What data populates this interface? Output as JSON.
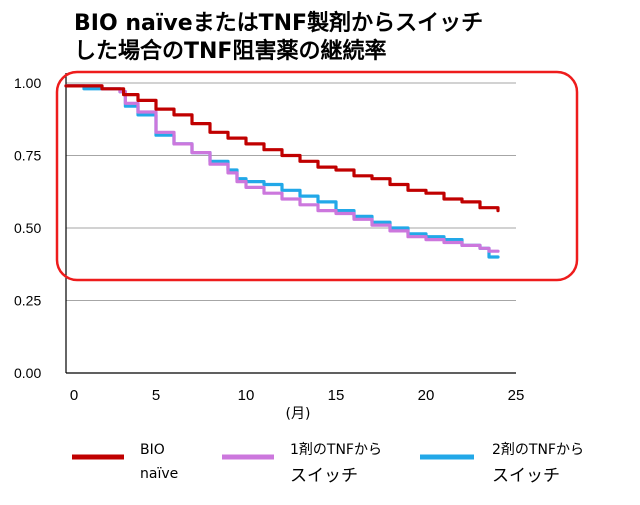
{
  "chart_data": {
    "type": "line",
    "title_lines": [
      "BIO naïveまたはTNF製剤からスイッチ",
      "した場合のTNF阻害薬の継続率"
    ],
    "xlabel": "(月)",
    "ylabel": "",
    "xlim": [
      0,
      25
    ],
    "ylim": [
      0,
      1.0
    ],
    "x_ticks": [
      0,
      5,
      10,
      15,
      20,
      25
    ],
    "y_ticks": [
      0.0,
      0.25,
      0.5,
      0.75,
      1.0
    ],
    "y_tick_labels": [
      "0.00",
      "0.25",
      "0.50",
      "0.75",
      "1.00"
    ],
    "x_tick_labels": [
      "0",
      "5",
      "10",
      "15",
      "20",
      "25"
    ],
    "grid": true,
    "legend_position": "bottom",
    "highlight_box": {
      "color": "#ee1c1c",
      "y_range": [
        0.5,
        1.0
      ]
    },
    "series": [
      {
        "name_lines": [
          "BIO",
          "naïve"
        ],
        "color": "#c00000",
        "x": [
          0,
          1,
          2,
          3,
          3.2,
          3.5,
          4,
          5,
          6,
          7,
          8,
          9,
          10,
          11,
          12,
          13,
          14,
          15,
          16,
          17,
          18,
          19,
          20,
          21,
          22,
          23,
          24
        ],
        "y": [
          0.99,
          0.99,
          0.98,
          0.98,
          0.96,
          0.96,
          0.94,
          0.91,
          0.89,
          0.86,
          0.83,
          0.81,
          0.79,
          0.77,
          0.75,
          0.73,
          0.71,
          0.7,
          0.68,
          0.67,
          0.65,
          0.63,
          0.62,
          0.6,
          0.59,
          0.57,
          0.56
        ]
      },
      {
        "name_lines": [
          "1剤のTNFから",
          "スイッチ"
        ],
        "color": "#cc77dd",
        "x": [
          0,
          1,
          2,
          3,
          3.3,
          4,
          5,
          6,
          7,
          8,
          9,
          9.5,
          10,
          11,
          12,
          13,
          14,
          15,
          16,
          17,
          18,
          19,
          20,
          21,
          22,
          23,
          23.5,
          24
        ],
        "y": [
          0.99,
          0.99,
          0.98,
          0.97,
          0.93,
          0.9,
          0.83,
          0.79,
          0.76,
          0.72,
          0.69,
          0.66,
          0.64,
          0.62,
          0.6,
          0.58,
          0.56,
          0.55,
          0.53,
          0.51,
          0.49,
          0.47,
          0.46,
          0.45,
          0.44,
          0.43,
          0.42,
          0.42
        ]
      },
      {
        "name_lines": [
          "2剤のTNFから",
          "スイッチ"
        ],
        "color": "#22a8e8",
        "x": [
          0,
          1,
          2,
          3,
          3.3,
          4,
          5,
          6,
          7,
          8,
          9,
          9.5,
          10,
          11,
          12,
          13,
          14,
          15,
          16,
          17,
          18,
          19,
          20,
          21,
          22,
          23,
          23.5,
          24
        ],
        "y": [
          0.99,
          0.98,
          0.98,
          0.97,
          0.92,
          0.89,
          0.82,
          0.79,
          0.76,
          0.73,
          0.7,
          0.67,
          0.66,
          0.65,
          0.63,
          0.61,
          0.59,
          0.56,
          0.54,
          0.52,
          0.5,
          0.48,
          0.47,
          0.46,
          0.44,
          0.43,
          0.4,
          0.4
        ]
      }
    ]
  }
}
